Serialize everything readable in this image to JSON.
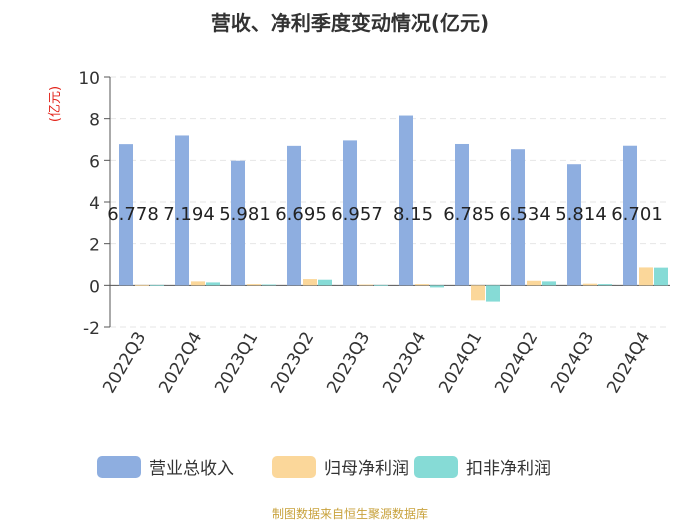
{
  "chart_data": {
    "type": "bar",
    "title": "营收、净利季度变动情况(亿元)",
    "ylabel": "(亿元)",
    "xlabel": "",
    "ylim": [
      -2,
      10
    ],
    "yticks": [
      -2,
      0,
      2,
      4,
      6,
      8,
      10
    ],
    "grid": true,
    "legend_position": "bottom",
    "categories": [
      "2022Q3",
      "2022Q4",
      "2023Q1",
      "2023Q2",
      "2023Q3",
      "2023Q4",
      "2024Q1",
      "2024Q2",
      "2024Q3",
      "2024Q4"
    ],
    "series": [
      {
        "name": "营业总收入",
        "color": "#8eaee0",
        "values": [
          6.778,
          7.194,
          5.981,
          6.695,
          6.957,
          8.15,
          6.785,
          6.534,
          5.814,
          6.701
        ]
      },
      {
        "name": "归母净利润",
        "color": "#fbd79a",
        "values": [
          0.02,
          0.19,
          0.06,
          0.3,
          0.04,
          0.06,
          -0.72,
          0.22,
          0.08,
          0.86
        ]
      },
      {
        "name": "扣非净利润",
        "color": "#86dbd6",
        "values": [
          0.02,
          0.14,
          0.04,
          0.27,
          0.02,
          -0.1,
          -0.78,
          0.19,
          0.06,
          0.85
        ]
      }
    ],
    "data_labels": [
      "6.778",
      "7.194",
      "5.981",
      "6.695",
      "6.957",
      "8.15",
      "6.785",
      "6.534",
      "5.814",
      "6.701"
    ]
  },
  "footer": {
    "source": "制图数据来自恒生聚源数据库"
  },
  "colors": {
    "title": "#333333",
    "axis_label": "#e2231a",
    "footer": "#c8a23c",
    "grid": "#e6e6e6",
    "tick_text": "#333333"
  }
}
